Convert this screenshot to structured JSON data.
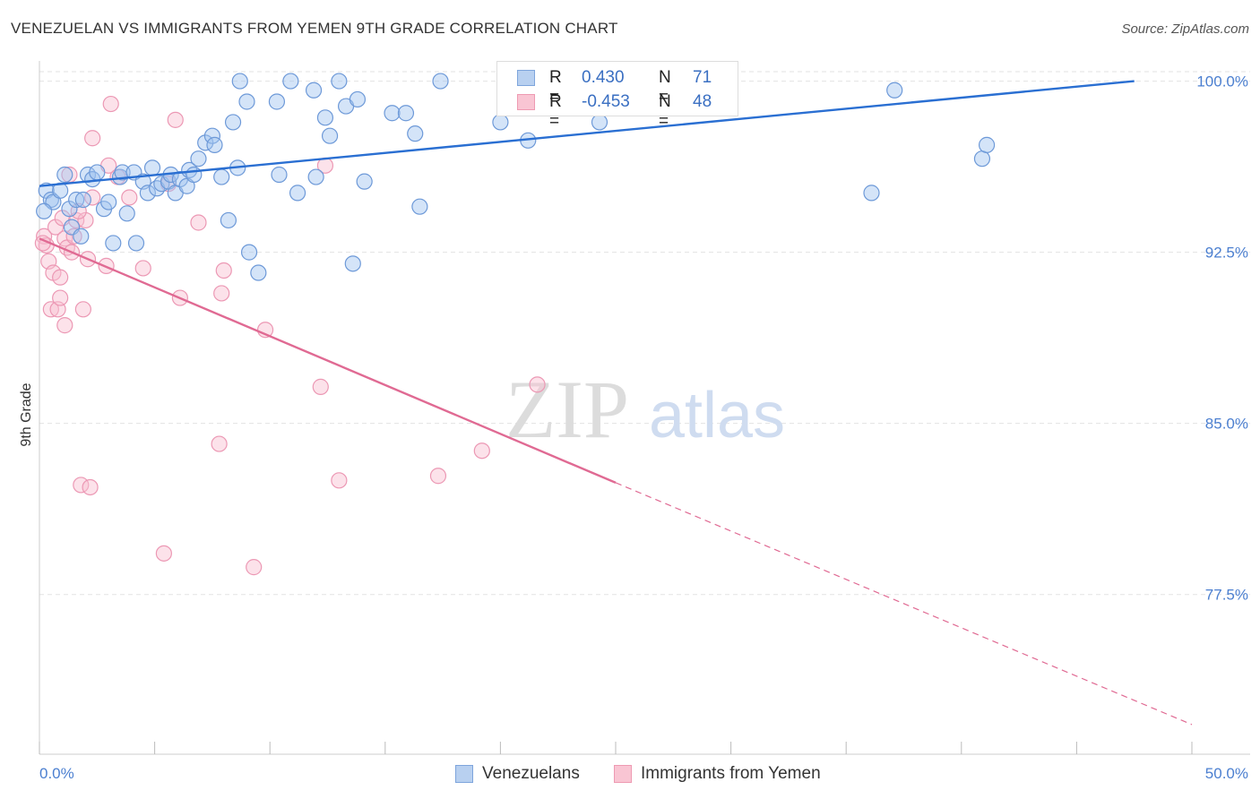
{
  "title": "VENEZUELAN VS IMMIGRANTS FROM YEMEN 9TH GRADE CORRELATION CHART",
  "source": "Source: ZipAtlas.com",
  "watermark": {
    "zip": "ZIP",
    "atlas": "atlas"
  },
  "legend": {
    "r_label": "R =",
    "n_label": "N =",
    "rows": [
      {
        "name": "Venezuelans",
        "r": "0.430",
        "n": "71",
        "fill": "#b8d0f0",
        "stroke": "#7ea5dc"
      },
      {
        "name": "Immigrants from Yemen",
        "r": "-0.453",
        "n": "48",
        "fill": "#f9c5d3",
        "stroke": "#ee9ab2"
      }
    ]
  },
  "chart_data": {
    "type": "scatter",
    "ylabel": "9th Grade",
    "xlabel": "",
    "x_tick_labels": [
      "0.0%",
      "50.0%"
    ],
    "y_tick_labels": [
      "100.0%",
      "92.5%",
      "85.0%",
      "77.5%"
    ],
    "xlim": [
      0,
      50
    ],
    "ylim": [
      70.5,
      101.2
    ],
    "y_ticks": [
      100.0,
      92.5,
      85.0,
      77.5
    ],
    "gridlines": true,
    "colors": {
      "venezuelans": "#5b8fd6",
      "yemen": "#ec89a8",
      "blue_line": "#2a6fd2",
      "pink_line": "#e06a93",
      "axis_text": "#4b7fd0"
    },
    "series": [
      {
        "name": "Venezuelans",
        "trend": {
          "x1": 0,
          "y1": 95.4,
          "x2": 47.5,
          "y2": 100.0
        },
        "points": [
          [
            0.3,
            95.2
          ],
          [
            0.5,
            94.8
          ],
          [
            0.6,
            94.7
          ],
          [
            0.9,
            95.2
          ],
          [
            1.1,
            95.9
          ],
          [
            1.3,
            94.4
          ],
          [
            1.4,
            93.6
          ],
          [
            1.6,
            94.8
          ],
          [
            1.8,
            93.2
          ],
          [
            1.9,
            94.8
          ],
          [
            2.1,
            95.9
          ],
          [
            2.3,
            95.7
          ],
          [
            2.5,
            96.0
          ],
          [
            2.8,
            94.4
          ],
          [
            3.0,
            94.7
          ],
          [
            3.2,
            92.9
          ],
          [
            3.5,
            95.8
          ],
          [
            3.6,
            96.0
          ],
          [
            3.8,
            94.2
          ],
          [
            4.1,
            96.0
          ],
          [
            4.2,
            92.9
          ],
          [
            4.5,
            95.6
          ],
          [
            4.7,
            95.1
          ],
          [
            4.9,
            96.2
          ],
          [
            5.1,
            95.3
          ],
          [
            5.3,
            95.5
          ],
          [
            5.6,
            95.6
          ],
          [
            5.7,
            95.9
          ],
          [
            5.9,
            95.1
          ],
          [
            6.1,
            95.7
          ],
          [
            6.4,
            95.4
          ],
          [
            6.5,
            96.1
          ],
          [
            6.7,
            95.9
          ],
          [
            6.9,
            96.6
          ],
          [
            7.2,
            97.3
          ],
          [
            7.5,
            97.6
          ],
          [
            7.6,
            97.2
          ],
          [
            7.9,
            95.8
          ],
          [
            8.2,
            93.9
          ],
          [
            8.4,
            98.2
          ],
          [
            8.6,
            96.2
          ],
          [
            8.7,
            100.0
          ],
          [
            9.0,
            99.1
          ],
          [
            9.1,
            92.5
          ],
          [
            9.5,
            91.6
          ],
          [
            10.3,
            99.1
          ],
          [
            10.4,
            95.9
          ],
          [
            10.9,
            100.0
          ],
          [
            11.2,
            95.1
          ],
          [
            11.9,
            99.6
          ],
          [
            12.0,
            95.8
          ],
          [
            12.4,
            98.4
          ],
          [
            12.6,
            97.6
          ],
          [
            13.0,
            100.0
          ],
          [
            13.3,
            98.9
          ],
          [
            13.6,
            92.0
          ],
          [
            13.8,
            99.2
          ],
          [
            14.1,
            95.6
          ],
          [
            15.3,
            98.6
          ],
          [
            15.9,
            98.6
          ],
          [
            16.3,
            97.7
          ],
          [
            16.5,
            94.5
          ],
          [
            17.4,
            100.0
          ],
          [
            20.0,
            98.2
          ],
          [
            21.2,
            97.4
          ],
          [
            24.3,
            98.2
          ],
          [
            36.1,
            95.1
          ],
          [
            37.1,
            99.6
          ],
          [
            40.9,
            96.6
          ],
          [
            41.1,
            97.2
          ],
          [
            0.2,
            94.3
          ]
        ]
      },
      {
        "name": "Immigrants from Yemen",
        "trend": {
          "x1": 0,
          "y1": 93.1,
          "x2": 25.0,
          "y2": 82.4,
          "dash_x2": 50.0,
          "dash_y2": 71.8
        },
        "points": [
          [
            0.2,
            93.2
          ],
          [
            0.3,
            92.8
          ],
          [
            0.4,
            92.1
          ],
          [
            0.5,
            90.0
          ],
          [
            0.6,
            91.6
          ],
          [
            0.7,
            93.6
          ],
          [
            0.8,
            90.0
          ],
          [
            0.9,
            91.4
          ],
          [
            0.9,
            90.5
          ],
          [
            1.0,
            94.0
          ],
          [
            1.1,
            89.3
          ],
          [
            1.1,
            93.1
          ],
          [
            1.2,
            92.7
          ],
          [
            1.3,
            95.9
          ],
          [
            1.4,
            92.5
          ],
          [
            1.5,
            93.2
          ],
          [
            1.6,
            93.9
          ],
          [
            1.8,
            82.3
          ],
          [
            1.9,
            90.0
          ],
          [
            2.0,
            93.9
          ],
          [
            2.1,
            92.2
          ],
          [
            2.2,
            82.2
          ],
          [
            2.3,
            97.5
          ],
          [
            2.3,
            94.9
          ],
          [
            2.9,
            91.9
          ],
          [
            3.0,
            96.3
          ],
          [
            3.1,
            99.0
          ],
          [
            3.4,
            95.8
          ],
          [
            3.9,
            94.9
          ],
          [
            4.5,
            91.8
          ],
          [
            5.4,
            79.3
          ],
          [
            5.6,
            95.5
          ],
          [
            5.9,
            98.3
          ],
          [
            6.1,
            90.5
          ],
          [
            6.9,
            93.8
          ],
          [
            7.8,
            84.1
          ],
          [
            7.9,
            90.7
          ],
          [
            8.0,
            91.7
          ],
          [
            9.3,
            78.7
          ],
          [
            9.8,
            89.1
          ],
          [
            12.2,
            86.6
          ],
          [
            12.4,
            96.3
          ],
          [
            13.0,
            82.5
          ],
          [
            17.3,
            82.7
          ],
          [
            19.2,
            83.8
          ],
          [
            21.6,
            86.7
          ],
          [
            0.15,
            92.9
          ],
          [
            1.7,
            94.3
          ]
        ]
      }
    ]
  }
}
